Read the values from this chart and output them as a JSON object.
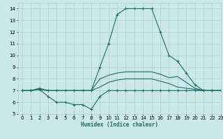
{
  "xlabel": "Humidex (Indice chaleur)",
  "xlim": [
    -0.5,
    23
  ],
  "ylim": [
    5,
    14.5
  ],
  "yticks": [
    5,
    6,
    7,
    8,
    9,
    10,
    11,
    12,
    13,
    14
  ],
  "xticks": [
    0,
    1,
    2,
    3,
    4,
    5,
    6,
    7,
    8,
    9,
    10,
    11,
    12,
    13,
    14,
    15,
    16,
    17,
    18,
    19,
    20,
    21,
    22,
    23
  ],
  "bg_color": "#cce8e8",
  "line_color": "#1a6e6a",
  "grid_color": "#aacfcf",
  "curves": [
    {
      "x": [
        0,
        1,
        2,
        3,
        4,
        5,
        6,
        7,
        8,
        9,
        10,
        11,
        12,
        13,
        14,
        15,
        16,
        17,
        18,
        19,
        20,
        21,
        22,
        23
      ],
      "y": [
        7,
        7,
        7.2,
        7,
        7,
        7,
        7,
        7,
        7,
        9,
        11,
        13.5,
        14,
        14,
        14,
        14,
        12,
        10,
        9.5,
        8.5,
        7.5,
        7,
        7,
        7
      ],
      "marker": true
    },
    {
      "x": [
        0,
        1,
        2,
        3,
        4,
        5,
        6,
        7,
        8,
        9,
        10,
        11,
        12,
        13,
        14,
        15,
        16,
        17,
        18,
        19,
        20,
        21,
        22,
        23
      ],
      "y": [
        7,
        7,
        7.1,
        7,
        7,
        7,
        7,
        7,
        7,
        8.0,
        8.3,
        8.5,
        8.6,
        8.6,
        8.6,
        8.6,
        8.4,
        8.1,
        8.2,
        7.7,
        7.2,
        7,
        7,
        7
      ],
      "marker": false
    },
    {
      "x": [
        0,
        1,
        2,
        3,
        4,
        5,
        6,
        7,
        8,
        9,
        10,
        11,
        12,
        13,
        14,
        15,
        16,
        17,
        18,
        19,
        20,
        21,
        22,
        23
      ],
      "y": [
        7,
        7,
        7.1,
        7,
        7,
        7,
        7,
        7,
        7,
        7.3,
        7.7,
        7.9,
        8.0,
        8.0,
        8.0,
        8.0,
        7.8,
        7.6,
        7.3,
        7.2,
        7.1,
        7,
        7,
        7
      ],
      "marker": false
    },
    {
      "x": [
        0,
        1,
        2,
        3,
        4,
        5,
        6,
        7,
        8,
        9,
        10,
        11,
        12,
        13,
        14,
        15,
        16,
        17,
        18,
        19,
        20,
        21,
        22,
        23
      ],
      "y": [
        7,
        7,
        7.1,
        6.5,
        6,
        6,
        5.8,
        5.8,
        5.4,
        6.5,
        7,
        7,
        7,
        7,
        7,
        7,
        7,
        7,
        7,
        7,
        7,
        7,
        7,
        7
      ],
      "marker": true
    }
  ]
}
